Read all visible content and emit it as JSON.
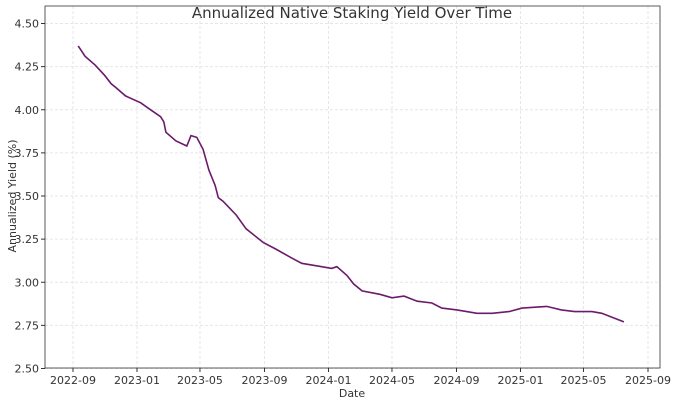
{
  "chart_data": {
    "type": "line",
    "title": "Annualized Native Staking Yield Over Time",
    "xlabel": "Date",
    "ylabel": "Annualized Yield (%)",
    "xlim": [
      "2022-08-01",
      "2025-09-20"
    ],
    "ylim": [
      2.5,
      4.5
    ],
    "grid": true,
    "line_color": "#6a1b6a",
    "x_ticks": [
      "2022-09",
      "2023-01",
      "2023-05",
      "2023-09",
      "2024-01",
      "2024-05",
      "2024-09",
      "2025-01",
      "2025-05",
      "2025-09"
    ],
    "y_ticks": [
      "2.50",
      "2.75",
      "3.00",
      "3.25",
      "3.50",
      "3.75",
      "4.00",
      "4.25",
      "4.50"
    ],
    "series": [
      {
        "x": [
          "2022-09-11",
          "2022-09-24",
          "2022-10-13",
          "2022-10-31",
          "2022-11-13",
          "2022-11-21",
          "2022-12-10",
          "2023-01-08",
          "2023-01-27",
          "2023-02-15",
          "2023-02-21",
          "2023-02-25",
          "2023-03-16",
          "2023-04-06",
          "2023-04-14",
          "2023-04-25",
          "2023-05-07",
          "2023-05-18",
          "2023-05-30",
          "2023-06-05",
          "2023-06-14",
          "2023-07-09",
          "2023-07-28",
          "2023-08-30",
          "2023-09-24",
          "2023-10-23",
          "2023-11-11",
          "2023-12-19",
          "2024-01-07",
          "2024-01-17",
          "2024-02-05",
          "2024-02-18",
          "2024-03-05",
          "2024-04-08",
          "2024-05-01",
          "2024-05-24",
          "2024-06-18",
          "2024-07-16",
          "2024-08-04",
          "2024-09-02",
          "2024-10-10",
          "2024-11-08",
          "2024-12-10",
          "2025-01-04",
          "2025-02-20",
          "2025-03-20",
          "2025-04-14",
          "2025-05-17",
          "2025-06-05",
          "2025-07-17"
        ],
        "y": [
          4.37,
          4.31,
          4.26,
          4.2,
          4.15,
          4.13,
          4.08,
          4.04,
          4.0,
          3.96,
          3.93,
          3.87,
          3.82,
          3.79,
          3.85,
          3.84,
          3.77,
          3.65,
          3.56,
          3.49,
          3.47,
          3.39,
          3.31,
          3.23,
          3.19,
          3.14,
          3.11,
          3.09,
          3.08,
          3.09,
          3.04,
          2.99,
          2.95,
          2.93,
          2.91,
          2.92,
          2.89,
          2.88,
          2.85,
          2.84,
          2.82,
          2.82,
          2.83,
          2.85,
          2.86,
          2.84,
          2.83,
          2.83,
          2.82,
          2.77
        ]
      }
    ]
  }
}
